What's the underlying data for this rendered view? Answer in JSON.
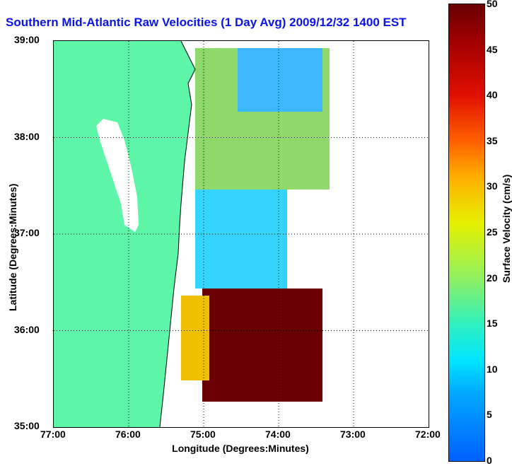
{
  "title": "Southern Mid-Atlantic Raw Velocities (1 Day Avg) 2009/12/32 1400 EST",
  "axes": {
    "xlabel": "Longitude (Degrees:Minutes)",
    "ylabel": "Latitude (Degrees:Minutes)",
    "x_ticks": [
      "77:00",
      "76:00",
      "75:00",
      "74:00",
      "73:00",
      "72:00"
    ],
    "y_ticks": [
      "39:00",
      "38:00",
      "37:00",
      "36:00",
      "35:00"
    ]
  },
  "colorbar": {
    "label": "Surface Velocity (cm/s)",
    "ticks": [
      "50",
      "45",
      "40",
      "35",
      "30",
      "25",
      "20",
      "15",
      "10",
      "5",
      "0"
    ],
    "min": 0,
    "max": 50
  },
  "colors": {
    "title": "#0a14e6",
    "land": "#5df5a8",
    "water": "#ffffff",
    "grid": "#000000"
  },
  "map": {
    "projection": "lat-lon",
    "lon_range": [
      -77,
      -72
    ],
    "lat_range": [
      35,
      39
    ],
    "grid": true
  }
}
